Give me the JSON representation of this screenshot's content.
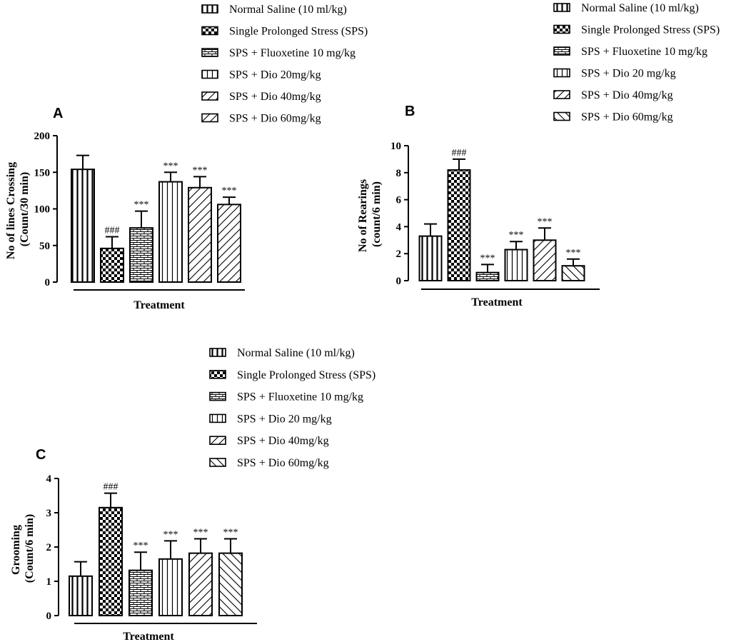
{
  "chart_data": [
    {
      "type": "bar",
      "panel": "A",
      "title": "",
      "xlabel": "Treatment",
      "ylabel": "No of lines Crossing (Count/30 min)",
      "ylabel_lines": [
        "No of lines Crossing",
        "(Count/30 min)"
      ],
      "ylim": [
        0,
        200
      ],
      "yticks": [
        0,
        50,
        100,
        150,
        200
      ],
      "categories": [
        "Normal Saline (10 ml/kg)",
        "Single Prolonged Stress (SPS)",
        "SPS + Fluoxetine 10 mg/kg",
        "SPS + Dio 20mg/kg",
        "SPS + Dio 40mg/kg",
        "SPS + Dio 60mg/kg"
      ],
      "legend": [
        "Normal Saline (10 ml/kg)",
        "Single Prolonged Stress (SPS)",
        "SPS + Fluoxetine 10 mg/kg",
        "SPS + Dio 20mg/kg",
        "SPS + Dio 40mg/kg",
        "SPS + Dio 60mg/kg"
      ],
      "patterns": [
        "vertical",
        "checker",
        "brick",
        "vertical-fine",
        "diag-down",
        "diag-down"
      ],
      "values": [
        154,
        46,
        74,
        137,
        129,
        106
      ],
      "errors": [
        19,
        16,
        23,
        13,
        15,
        10
      ],
      "annotations": [
        "",
        "###",
        "***",
        "***",
        "***",
        "***"
      ]
    },
    {
      "type": "bar",
      "panel": "B",
      "title": "",
      "xlabel": "Treatment",
      "ylabel": "No of Rearings (count/6 min)",
      "ylabel_lines": [
        "No of Rearings",
        "(count/6 min)"
      ],
      "ylim": [
        0,
        10
      ],
      "yticks": [
        0,
        2,
        4,
        6,
        8,
        10
      ],
      "categories": [
        "Normal Saline (10 ml/kg)",
        "Single Prolonged Stress (SPS)",
        "SPS + Fluoxetine 10 mg/kg",
        "SPS + Dio 20 mg/kg",
        "SPS + Dio 40mg/kg",
        "SPS + Dio 60mg/kg"
      ],
      "legend": [
        "Normal Saline (10 ml/kg)",
        "Single Prolonged Stress (SPS)",
        "SPS + Fluoxetine 10 mg/kg",
        "SPS + Dio 20 mg/kg",
        "SPS + Dio 40mg/kg",
        "SPS + Dio 60mg/kg"
      ],
      "patterns": [
        "vertical",
        "checker",
        "brick",
        "vertical-fine",
        "diag-down",
        "diag-up"
      ],
      "values": [
        3.3,
        8.2,
        0.6,
        2.3,
        3.0,
        1.1
      ],
      "errors": [
        0.9,
        0.8,
        0.6,
        0.6,
        0.9,
        0.5
      ],
      "annotations": [
        "",
        "###",
        "***",
        "***",
        "***",
        "***"
      ]
    },
    {
      "type": "bar",
      "panel": "C",
      "title": "",
      "xlabel": "Treatment",
      "ylabel": "Grooming (Count/6 min)",
      "ylabel_lines": [
        "Grooming",
        "(Count/6 min)"
      ],
      "ylim": [
        0,
        4
      ],
      "yticks": [
        0,
        1,
        2,
        3,
        4
      ],
      "categories": [
        "Normal Saline (10 ml/kg)",
        "Single Prolonged Stress (SPS)",
        "SPS + Fluoxetine 10 mg/kg",
        "SPS + Dio 20 mg/kg",
        "SPS + Dio 40mg/kg",
        "SPS + Dio 60mg/kg"
      ],
      "legend": [
        "Normal Saline (10 ml/kg)",
        "Single Prolonged Stress (SPS)",
        "SPS + Fluoxetine 10 mg/kg",
        "SPS + Dio 20 mg/kg",
        "SPS + Dio 40mg/kg",
        "SPS + Dio 60mg/kg"
      ],
      "patterns": [
        "vertical",
        "checker",
        "brick",
        "vertical-fine",
        "diag-down",
        "diag-up"
      ],
      "values": [
        1.15,
        3.15,
        1.32,
        1.65,
        1.82,
        1.82
      ],
      "errors": [
        0.42,
        0.42,
        0.53,
        0.53,
        0.42,
        0.42
      ],
      "annotations": [
        "",
        "###",
        "***",
        "***",
        "***",
        "***"
      ]
    }
  ]
}
